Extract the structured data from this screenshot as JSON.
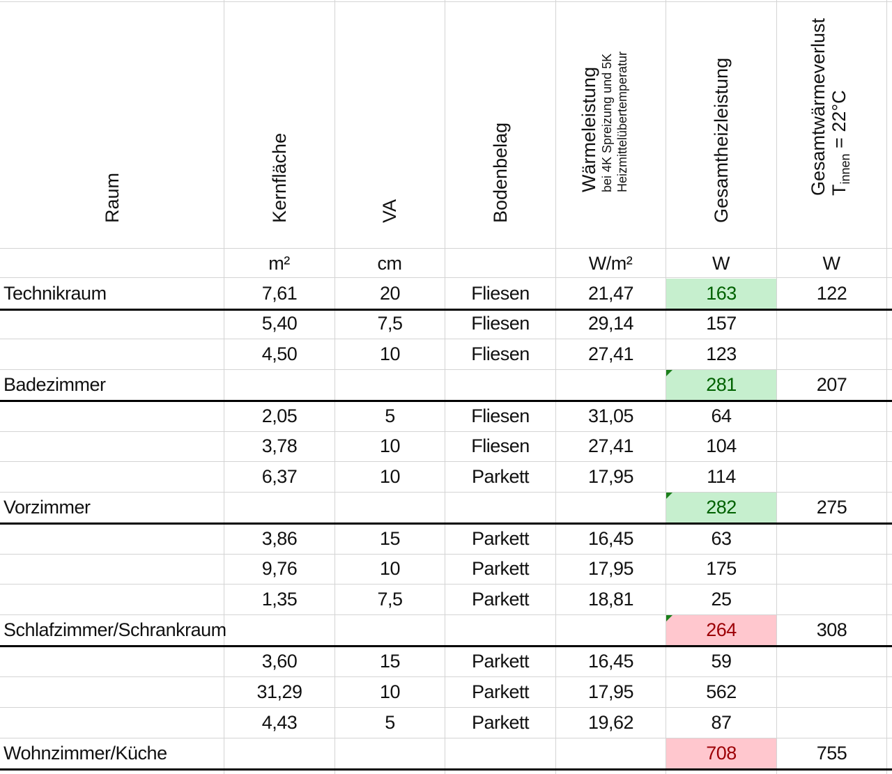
{
  "headers": {
    "raum": "Raum",
    "kernflaeche": "Kernfläche",
    "va": "VA",
    "bodenbelag": "Bodenbelag",
    "waermeleistung": "Wärmeleistung",
    "waermeleistung_sub1": "bei 4K Spreizung und 5K",
    "waermeleistung_sub2": "Heizmittelübertemperatur",
    "gesamtheizleistung": "Gesamtheizleistung",
    "gesamtwaermeverlust": "Gesamtwärmeverlust",
    "tinnen_t": "T",
    "tinnen_sub": "innen",
    "tinnen_rest": " = 22°C"
  },
  "units": [
    "",
    "m²",
    "cm",
    "",
    "W/m²",
    "W",
    "W"
  ],
  "rows": [
    {
      "raum": "Technikraum",
      "kern": "7,61",
      "va": "20",
      "boden": "Fliesen",
      "wl": "21,47",
      "ges": "163",
      "verlust": "122",
      "hl": "green",
      "thick": true,
      "tri": false
    },
    {
      "raum": "",
      "kern": "5,40",
      "va": "7,5",
      "boden": "Fliesen",
      "wl": "29,14",
      "ges": "157",
      "verlust": "",
      "hl": "",
      "thick": false,
      "tri": false
    },
    {
      "raum": "",
      "kern": "4,50",
      "va": "10",
      "boden": "Fliesen",
      "wl": "27,41",
      "ges": "123",
      "verlust": "",
      "hl": "",
      "thick": false,
      "tri": false
    },
    {
      "raum": "Badezimmer",
      "kern": "",
      "va": "",
      "boden": "",
      "wl": "",
      "ges": "281",
      "verlust": "207",
      "hl": "green",
      "thick": true,
      "tri": true
    },
    {
      "raum": "",
      "kern": "2,05",
      "va": "5",
      "boden": "Fliesen",
      "wl": "31,05",
      "ges": "64",
      "verlust": "",
      "hl": "",
      "thick": false,
      "tri": false
    },
    {
      "raum": "",
      "kern": "3,78",
      "va": "10",
      "boden": "Fliesen",
      "wl": "27,41",
      "ges": "104",
      "verlust": "",
      "hl": "",
      "thick": false,
      "tri": false
    },
    {
      "raum": "",
      "kern": "6,37",
      "va": "10",
      "boden": "Parkett",
      "wl": "17,95",
      "ges": "114",
      "verlust": "",
      "hl": "",
      "thick": false,
      "tri": false
    },
    {
      "raum": "Vorzimmer",
      "kern": "",
      "va": "",
      "boden": "",
      "wl": "",
      "ges": "282",
      "verlust": "275",
      "hl": "green",
      "thick": true,
      "tri": true
    },
    {
      "raum": "",
      "kern": "3,86",
      "va": "15",
      "boden": "Parkett",
      "wl": "16,45",
      "ges": "63",
      "verlust": "",
      "hl": "",
      "thick": false,
      "tri": false
    },
    {
      "raum": "",
      "kern": "9,76",
      "va": "10",
      "boden": "Parkett",
      "wl": "17,95",
      "ges": "175",
      "verlust": "",
      "hl": "",
      "thick": false,
      "tri": false
    },
    {
      "raum": "",
      "kern": "1,35",
      "va": "7,5",
      "boden": "Parkett",
      "wl": "18,81",
      "ges": "25",
      "verlust": "",
      "hl": "",
      "thick": false,
      "tri": false
    },
    {
      "raum": "Schlafzimmer/Schrankraum",
      "kern": "",
      "va": "",
      "boden": "",
      "wl": "",
      "ges": "264",
      "verlust": "308",
      "hl": "red",
      "thick": true,
      "tri": true
    },
    {
      "raum": "",
      "kern": "3,60",
      "va": "15",
      "boden": "Parkett",
      "wl": "16,45",
      "ges": "59",
      "verlust": "",
      "hl": "",
      "thick": false,
      "tri": false
    },
    {
      "raum": "",
      "kern": "31,29",
      "va": "10",
      "boden": "Parkett",
      "wl": "17,95",
      "ges": "562",
      "verlust": "",
      "hl": "",
      "thick": false,
      "tri": false
    },
    {
      "raum": "",
      "kern": "4,43",
      "va": "5",
      "boden": "Parkett",
      "wl": "19,62",
      "ges": "87",
      "verlust": "",
      "hl": "",
      "thick": false,
      "tri": false
    },
    {
      "raum": "Wohnzimmer/Küche",
      "kern": "",
      "va": "",
      "boden": "",
      "wl": "",
      "ges": "708",
      "verlust": "755",
      "hl": "red",
      "thick": true,
      "tri": false
    }
  ]
}
